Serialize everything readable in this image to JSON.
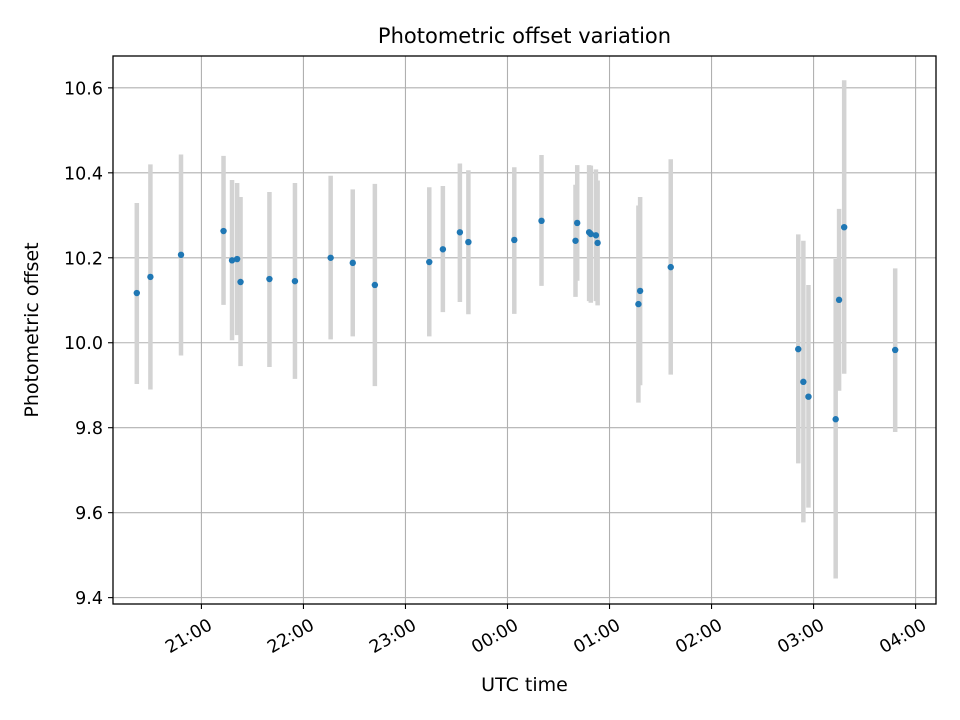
{
  "chart_data": {
    "type": "scatter",
    "title": "Photometric offset variation",
    "xlabel": "UTC time",
    "ylabel": "Photometric offset",
    "xlim": [
      "20:08",
      "04:12"
    ],
    "ylim": [
      9.385,
      10.675
    ],
    "x_ticks": [
      "21:00",
      "22:00",
      "23:00",
      "00:00",
      "01:00",
      "02:00",
      "03:00",
      "04:00"
    ],
    "y_ticks": [
      "9.4",
      "9.6",
      "9.8",
      "10.0",
      "10.2",
      "10.4",
      "10.6"
    ],
    "grid": true,
    "point_color": "#1f77b4",
    "errorbar_color": "#d3d3d3",
    "points": [
      {
        "x": "20:22",
        "y": 10.117,
        "ylo": 9.903,
        "yhi": 10.329
      },
      {
        "x": "20:30",
        "y": 10.155,
        "ylo": 9.89,
        "yhi": 10.42
      },
      {
        "x": "20:48",
        "y": 10.207,
        "ylo": 9.97,
        "yhi": 10.443
      },
      {
        "x": "21:13",
        "y": 10.263,
        "ylo": 10.089,
        "yhi": 10.44
      },
      {
        "x": "21:18",
        "y": 10.194,
        "ylo": 10.006,
        "yhi": 10.383
      },
      {
        "x": "21:21",
        "y": 10.197,
        "ylo": 10.018,
        "yhi": 10.376
      },
      {
        "x": "21:23",
        "y": 10.143,
        "ylo": 9.945,
        "yhi": 10.343
      },
      {
        "x": "21:40",
        "y": 10.15,
        "ylo": 9.943,
        "yhi": 10.355
      },
      {
        "x": "21:55",
        "y": 10.145,
        "ylo": 9.915,
        "yhi": 10.376
      },
      {
        "x": "22:16",
        "y": 10.2,
        "ylo": 10.008,
        "yhi": 10.393
      },
      {
        "x": "22:29",
        "y": 10.188,
        "ylo": 10.015,
        "yhi": 10.361
      },
      {
        "x": "22:42",
        "y": 10.136,
        "ylo": 9.898,
        "yhi": 10.374
      },
      {
        "x": "23:14",
        "y": 10.19,
        "ylo": 10.015,
        "yhi": 10.366
      },
      {
        "x": "23:22",
        "y": 10.22,
        "ylo": 10.072,
        "yhi": 10.369
      },
      {
        "x": "23:32",
        "y": 10.26,
        "ylo": 10.096,
        "yhi": 10.422
      },
      {
        "x": "23:37",
        "y": 10.237,
        "ylo": 10.067,
        "yhi": 10.406
      },
      {
        "x": "00:04",
        "y": 10.242,
        "ylo": 10.068,
        "yhi": 10.413
      },
      {
        "x": "00:20",
        "y": 10.287,
        "ylo": 10.134,
        "yhi": 10.442
      },
      {
        "x": "00:40",
        "y": 10.24,
        "ylo": 10.108,
        "yhi": 10.372
      },
      {
        "x": "00:41",
        "y": 10.282,
        "ylo": 10.146,
        "yhi": 10.418
      },
      {
        "x": "00:48",
        "y": 10.26,
        "ylo": 10.098,
        "yhi": 10.418
      },
      {
        "x": "00:49",
        "y": 10.256,
        "ylo": 10.094,
        "yhi": 10.417
      },
      {
        "x": "00:52",
        "y": 10.253,
        "ylo": 10.098,
        "yhi": 10.408
      },
      {
        "x": "00:53",
        "y": 10.235,
        "ylo": 10.088,
        "yhi": 10.382
      },
      {
        "x": "01:17",
        "y": 10.091,
        "ylo": 9.859,
        "yhi": 10.323
      },
      {
        "x": "01:18",
        "y": 10.122,
        "ylo": 9.9,
        "yhi": 10.343
      },
      {
        "x": "01:36",
        "y": 10.178,
        "ylo": 9.925,
        "yhi": 10.432
      },
      {
        "x": "02:51",
        "y": 9.985,
        "ylo": 9.716,
        "yhi": 10.255
      },
      {
        "x": "02:54",
        "y": 9.908,
        "ylo": 9.577,
        "yhi": 10.24
      },
      {
        "x": "02:57",
        "y": 9.873,
        "ylo": 9.612,
        "yhi": 10.136
      },
      {
        "x": "03:13",
        "y": 9.82,
        "ylo": 9.445,
        "yhi": 10.197
      },
      {
        "x": "03:15",
        "y": 10.101,
        "ylo": 9.887,
        "yhi": 10.315
      },
      {
        "x": "03:18",
        "y": 10.272,
        "ylo": 9.927,
        "yhi": 10.618
      },
      {
        "x": "03:48",
        "y": 9.983,
        "ylo": 9.79,
        "yhi": 10.175
      }
    ]
  }
}
